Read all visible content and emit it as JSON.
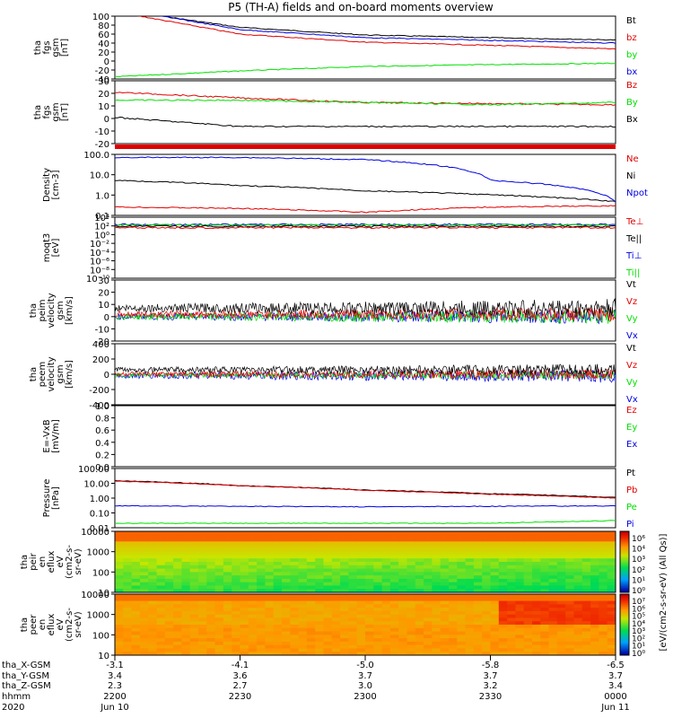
{
  "title": "P5 (TH-A) fields and on-board moments overview",
  "colors": {
    "black": "#000000",
    "red": "#e00000",
    "green": "#00e000",
    "blue": "#0000e0"
  },
  "panels": [
    {
      "id": "fgs_gsm",
      "ylabel": [
        "tha",
        "fgs",
        "gsm",
        "[nT]"
      ],
      "ylim": [
        -40,
        100
      ],
      "ticks": [
        "100",
        "80",
        "60",
        "40",
        "20",
        "0",
        "-20",
        "-40"
      ],
      "legend": [
        {
          "label": "Bt",
          "color": "black"
        },
        {
          "label": "bz",
          "color": "red"
        },
        {
          "label": "by",
          "color": "green"
        },
        {
          "label": "bx",
          "color": "blue"
        }
      ]
    },
    {
      "id": "fgs_gsm2",
      "ylabel": [
        "tha",
        "fgs",
        "gsm",
        "[nT]"
      ],
      "ylim": [
        -25,
        30
      ],
      "ticks": [
        "30",
        "20",
        "10",
        "0",
        "-10",
        "-20"
      ],
      "legend": [
        {
          "label": "Bz",
          "color": "red"
        },
        {
          "label": "By",
          "color": "green"
        },
        {
          "label": "Bx",
          "color": "black"
        }
      ]
    },
    {
      "id": "density",
      "ylabel": [
        "Density",
        "[cm-3]"
      ],
      "log": true,
      "ticks": [
        "100.0",
        "10.0",
        "1.0",
        "0.1"
      ],
      "legend": [
        {
          "label": "Ne",
          "color": "red"
        },
        {
          "label": "Ni",
          "color": "black"
        },
        {
          "label": "Npot",
          "color": "blue"
        }
      ]
    },
    {
      "id": "temp",
      "ylabel": [
        "moqt3",
        "[eV]"
      ],
      "log": true,
      "ticks": [
        "10⁴",
        "10²",
        "10⁰",
        "10⁻²",
        "10⁻⁴",
        "10⁻⁶",
        "10⁻⁸",
        "10⁻¹⁰"
      ],
      "legend": [
        {
          "label": "Te⊥",
          "color": "red"
        },
        {
          "label": "Te||",
          "color": "black"
        },
        {
          "label": "Ti⊥",
          "color": "blue"
        },
        {
          "label": "Ti||",
          "color": "green"
        }
      ]
    },
    {
      "id": "peim_vel",
      "ylabel": [
        "tha",
        "peim",
        "velocity",
        "gsm",
        "[km/s]"
      ],
      "ylim": [
        -20,
        30
      ],
      "ticks": [
        "30",
        "20",
        "10",
        "0",
        "-10",
        "-20"
      ],
      "legend": [
        {
          "label": "Vt",
          "color": "black"
        },
        {
          "label": "Vz",
          "color": "red"
        },
        {
          "label": "Vy",
          "color": "green"
        },
        {
          "label": "Vx",
          "color": "blue"
        }
      ]
    },
    {
      "id": "peem_vel",
      "ylabel": [
        "tha",
        "peem",
        "velocity",
        "gsm",
        "[km/s]"
      ],
      "ylim": [
        -400,
        400
      ],
      "ticks": [
        "400",
        "200",
        "0",
        "-200",
        "-400"
      ],
      "legend": [
        {
          "label": "Vt",
          "color": "black"
        },
        {
          "label": "Vz",
          "color": "red"
        },
        {
          "label": "Vy",
          "color": "green"
        },
        {
          "label": "Vx",
          "color": "blue"
        }
      ]
    },
    {
      "id": "efield",
      "ylabel": [
        "E=-VxB",
        "[mV/m]"
      ],
      "ylim": [
        0,
        1
      ],
      "ticks": [
        "1.0",
        "0.8",
        "0.6",
        "0.4",
        "0.2",
        "0.0"
      ],
      "legend": [
        {
          "label": "Ez",
          "color": "red"
        },
        {
          "label": "Ey",
          "color": "green"
        },
        {
          "label": "Ex",
          "color": "blue"
        }
      ]
    },
    {
      "id": "pressure",
      "ylabel": [
        "Pressure",
        "[nPa]"
      ],
      "log": true,
      "ticks": [
        "100.00",
        "10.00",
        "1.00",
        "0.10",
        "0.01"
      ],
      "legend": [
        {
          "label": "Pt",
          "color": "black"
        },
        {
          "label": "Pb",
          "color": "red"
        },
        {
          "label": "Pe",
          "color": "green"
        },
        {
          "label": "Pi",
          "color": "blue"
        }
      ]
    },
    {
      "id": "peir",
      "ylabel": [
        "tha",
        "peir",
        "en",
        "eflux",
        "eV",
        "(cm2-s-",
        "sr-eV)"
      ],
      "log": true,
      "ticks": [
        "10000",
        "1000",
        "100",
        "10"
      ]
    },
    {
      "id": "peer",
      "ylabel": [
        "tha",
        "peer",
        "en",
        "eflux",
        "eV",
        "(cm2-s-",
        "sr-eV)"
      ],
      "log": true,
      "ticks": [
        "10000",
        "1000",
        "100",
        "10"
      ]
    }
  ],
  "colorbar": {
    "label": "[eV/(cm2-s-sr-eV) (All Qs)]",
    "ticks1": [
      "10⁶",
      "10⁴",
      "10³",
      "10²",
      "10¹",
      "10⁰"
    ],
    "ticks2": [
      "10⁷",
      "10⁶",
      "10⁵",
      "10⁴",
      "10³",
      "10²",
      "10¹",
      "10⁰"
    ]
  },
  "xaxis": {
    "row_labels": [
      "tha_X-GSM",
      "tha_Y-GSM",
      "tha_Z-GSM",
      "hhmm",
      "2020"
    ],
    "columns": [
      {
        "x": "-3.1",
        "y": "3.4",
        "z": "2.3",
        "hhmm": "2200",
        "date": "Jun 10"
      },
      {
        "x": "-4.1",
        "y": "3.6",
        "z": "2.7",
        "hhmm": "2230",
        "date": ""
      },
      {
        "x": "-5.0",
        "y": "3.7",
        "z": "3.0",
        "hhmm": "2300",
        "date": ""
      },
      {
        "x": "-5.8",
        "y": "3.7",
        "z": "3.2",
        "hhmm": "2330",
        "date": ""
      },
      {
        "x": "-6.5",
        "y": "3.7",
        "z": "3.4",
        "hhmm": "0000",
        "date": "Jun 11"
      }
    ]
  },
  "chart_data": {
    "type": "line",
    "title": "P5 (TH-A) fields and on-board moments overview",
    "x_time": [
      "2200",
      "2230",
      "2300",
      "2330",
      "0000"
    ],
    "series": [
      {
        "name": "Bt",
        "panel": "fgs_gsm",
        "values": [
          115,
          75,
          58,
          52,
          47
        ]
      },
      {
        "name": "bz",
        "panel": "fgs_gsm",
        "values": [
          110,
          60,
          42,
          35,
          27
        ]
      },
      {
        "name": "by",
        "panel": "fgs_gsm",
        "values": [
          -35,
          -22,
          -12,
          -8,
          -5
        ]
      },
      {
        "name": "bx",
        "panel": "fgs_gsm",
        "values": [
          118,
          70,
          52,
          46,
          40
        ]
      },
      {
        "name": "Bz",
        "panel": "fgs_gsm2",
        "values": [
          20,
          15,
          11,
          10,
          9
        ]
      },
      {
        "name": "By",
        "panel": "fgs_gsm2",
        "values": [
          13,
          13,
          11,
          9,
          11
        ]
      },
      {
        "name": "Bx",
        "panel": "fgs_gsm2",
        "values": [
          -2,
          -10,
          -10,
          -10,
          -10
        ]
      },
      {
        "name": "Ne",
        "panel": "density",
        "values": [
          0.3,
          0.25,
          0.15,
          0.3,
          0.35
        ]
      },
      {
        "name": "Ni",
        "panel": "density",
        "values": [
          10,
          5,
          2.5,
          1.5,
          0.6
        ]
      },
      {
        "name": "Npot",
        "panel": "density",
        "values": [
          200,
          200,
          150,
          10,
          0.6
        ]
      },
      {
        "name": "Pt",
        "panel": "pressure",
        "values": [
          15,
          7,
          3.5,
          2,
          1.1
        ]
      },
      {
        "name": "Pb",
        "panel": "pressure",
        "values": [
          14,
          6.8,
          3.3,
          1.8,
          1
        ]
      },
      {
        "name": "Pe",
        "panel": "pressure",
        "values": [
          0.02,
          0.02,
          0.02,
          0.02,
          0.03
        ]
      },
      {
        "name": "Pi",
        "panel": "pressure",
        "values": [
          0.3,
          0.28,
          0.26,
          0.28,
          0.3
        ]
      }
    ]
  }
}
